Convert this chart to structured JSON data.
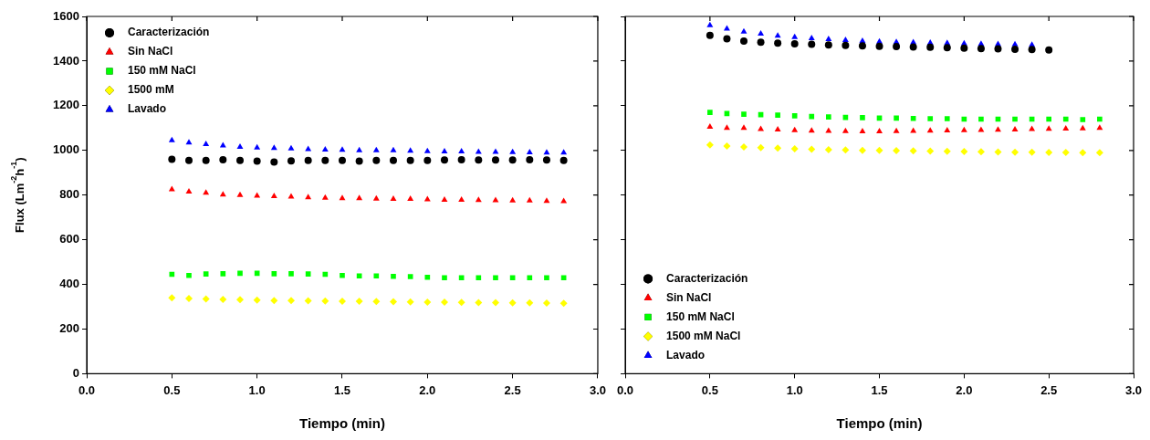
{
  "chart_data": [
    {
      "type": "scatter",
      "ylabel": "Flux (Lm$^{-2}$h$^{-1}$)",
      "xlabel": "Tiempo (min)",
      "xlim": [
        0,
        3
      ],
      "xticks": [
        {
          "value": 0,
          "label": "0.0"
        },
        {
          "value": 0.5,
          "label": "0.5"
        },
        {
          "value": 1,
          "label": "1.0"
        },
        {
          "value": 1.5,
          "label": "1.5"
        },
        {
          "value": 2,
          "label": "2.0"
        },
        {
          "value": 2.5,
          "label": "2.5"
        },
        {
          "value": 3,
          "label": "3.0"
        }
      ],
      "ylim": [
        0,
        1600
      ],
      "yticks": [
        0,
        200,
        400,
        600,
        800,
        1000,
        1200,
        1400,
        1600
      ],
      "grid": false,
      "legend": "top left",
      "series": [
        {
          "name": "Caracterización",
          "color": "#000000",
          "marker": "circle",
          "x": [
            0.5,
            0.6,
            0.7,
            0.8,
            0.9,
            1.0,
            1.1,
            1.2,
            1.3,
            1.4,
            1.5,
            1.6,
            1.7,
            1.8,
            1.9,
            2.0,
            2.1,
            2.2,
            2.3,
            2.4,
            2.5,
            2.6,
            2.7,
            2.8
          ],
          "values": [
            960,
            955,
            955,
            958,
            955,
            952,
            948,
            953,
            955,
            955,
            955,
            952,
            955,
            955,
            955,
            955,
            957,
            958,
            957,
            957,
            957,
            958,
            957,
            955
          ]
        },
        {
          "name": "Sin NaCl",
          "color": "#ff0000",
          "marker": "triangle",
          "x": [
            0.5,
            0.6,
            0.7,
            0.8,
            0.9,
            1.0,
            1.1,
            1.2,
            1.3,
            1.4,
            1.5,
            1.6,
            1.7,
            1.8,
            1.9,
            2.0,
            2.1,
            2.2,
            2.3,
            2.4,
            2.5,
            2.6,
            2.7,
            2.8
          ],
          "values": [
            825,
            815,
            810,
            802,
            800,
            797,
            795,
            793,
            790,
            788,
            785,
            785,
            783,
            782,
            782,
            780,
            778,
            778,
            777,
            776,
            775,
            775,
            773,
            772
          ]
        },
        {
          "name": "150 mM NaCl",
          "color": "#00ff00",
          "marker": "square",
          "x": [
            0.5,
            0.6,
            0.7,
            0.8,
            0.9,
            1.0,
            1.1,
            1.2,
            1.3,
            1.4,
            1.5,
            1.6,
            1.7,
            1.8,
            1.9,
            2.0,
            2.1,
            2.2,
            2.3,
            2.4,
            2.5,
            2.6,
            2.7,
            2.8
          ],
          "values": [
            445,
            440,
            447,
            448,
            450,
            450,
            448,
            448,
            447,
            445,
            440,
            438,
            438,
            436,
            435,
            432,
            430,
            430,
            430,
            430,
            430,
            430,
            430,
            430
          ]
        },
        {
          "name": "1500 mM",
          "color": "#ffff00",
          "marker": "diamond",
          "x": [
            0.5,
            0.6,
            0.7,
            0.8,
            0.9,
            1.0,
            1.1,
            1.2,
            1.3,
            1.4,
            1.5,
            1.6,
            1.7,
            1.8,
            1.9,
            2.0,
            2.1,
            2.2,
            2.3,
            2.4,
            2.5,
            2.6,
            2.7,
            2.8
          ],
          "values": [
            340,
            337,
            335,
            333,
            332,
            330,
            328,
            328,
            327,
            326,
            325,
            325,
            324,
            323,
            322,
            320,
            320,
            319,
            318,
            318,
            317,
            317,
            316,
            315
          ]
        },
        {
          "name": "Lavado",
          "color": "#0000ff",
          "marker": "triangle",
          "x": [
            0.5,
            0.6,
            0.7,
            0.8,
            0.9,
            1.0,
            1.1,
            1.2,
            1.3,
            1.4,
            1.5,
            1.6,
            1.7,
            1.8,
            1.9,
            2.0,
            2.1,
            2.2,
            2.3,
            2.4,
            2.5,
            2.6,
            2.7,
            2.8
          ],
          "values": [
            1045,
            1035,
            1028,
            1022,
            1015,
            1012,
            1010,
            1008,
            1005,
            1003,
            1002,
            1000,
            1000,
            1000,
            998,
            996,
            995,
            995,
            993,
            993,
            992,
            991,
            990,
            990
          ]
        }
      ]
    },
    {
      "type": "scatter",
      "xlabel": "Tiempo (min)",
      "xlim": [
        0,
        3
      ],
      "xticks": [
        {
          "value": 0,
          "label": "0.0"
        },
        {
          "value": 0.5,
          "label": "0.5"
        },
        {
          "value": 1,
          "label": "1.0"
        },
        {
          "value": 1.5,
          "label": "1.5"
        },
        {
          "value": 2,
          "label": "2.0"
        },
        {
          "value": 2.5,
          "label": "2.5"
        },
        {
          "value": 3,
          "label": "3.0"
        }
      ],
      "ylim": [
        0,
        1600
      ],
      "yticks": [
        0,
        200,
        400,
        600,
        800,
        1000,
        1200,
        1400,
        1600
      ],
      "tick_labels": "x",
      "grid": false,
      "legend": "bottom left",
      "series": [
        {
          "name": "Caracterización",
          "color": "#000000",
          "marker": "circle",
          "x": [
            0.5,
            0.6,
            0.7,
            0.8,
            0.9,
            1.0,
            1.1,
            1.2,
            1.3,
            1.4,
            1.5,
            1.6,
            1.7,
            1.8,
            1.9,
            2.0,
            2.1,
            2.2,
            2.3,
            2.4,
            2.5
          ],
          "values": [
            1515,
            1500,
            1490,
            1485,
            1480,
            1477,
            1475,
            1472,
            1470,
            1468,
            1466,
            1465,
            1463,
            1462,
            1460,
            1458,
            1456,
            1455,
            1453,
            1452,
            1450
          ]
        },
        {
          "name": "Sin NaCl",
          "color": "#ff0000",
          "marker": "triangle",
          "x": [
            0.5,
            0.6,
            0.7,
            0.8,
            0.9,
            1.0,
            1.1,
            1.2,
            1.3,
            1.4,
            1.5,
            1.6,
            1.7,
            1.8,
            1.9,
            2.0,
            2.1,
            2.2,
            2.3,
            2.4,
            2.5,
            2.6,
            2.7,
            2.8
          ],
          "values": [
            1105,
            1100,
            1100,
            1095,
            1093,
            1090,
            1088,
            1087,
            1086,
            1085,
            1085,
            1086,
            1087,
            1088,
            1089,
            1090,
            1091,
            1092,
            1093,
            1095,
            1096,
            1097,
            1098,
            1100
          ]
        },
        {
          "name": "150 mM NaCl",
          "color": "#00ff00",
          "marker": "square",
          "x": [
            0.5,
            0.6,
            0.7,
            0.8,
            0.9,
            1.0,
            1.1,
            1.2,
            1.3,
            1.4,
            1.5,
            1.6,
            1.7,
            1.8,
            1.9,
            2.0,
            2.1,
            2.2,
            2.3,
            2.4,
            2.5,
            2.6,
            2.7,
            2.8
          ],
          "values": [
            1170,
            1165,
            1162,
            1160,
            1158,
            1155,
            1152,
            1150,
            1148,
            1147,
            1145,
            1145,
            1143,
            1142,
            1142,
            1140,
            1140,
            1140,
            1140,
            1140,
            1140,
            1140,
            1138,
            1140
          ]
        },
        {
          "name": "1500 mM NaCl",
          "color": "#ffff00",
          "marker": "diamond",
          "x": [
            0.5,
            0.6,
            0.7,
            0.8,
            0.9,
            1.0,
            1.1,
            1.2,
            1.3,
            1.4,
            1.5,
            1.6,
            1.7,
            1.8,
            1.9,
            2.0,
            2.1,
            2.2,
            2.3,
            2.4,
            2.5,
            2.6,
            2.7,
            2.8
          ],
          "values": [
            1025,
            1020,
            1015,
            1012,
            1010,
            1007,
            1005,
            1003,
            1002,
            1000,
            1000,
            999,
            998,
            997,
            996,
            995,
            994,
            993,
            992,
            992,
            991,
            991,
            990,
            990
          ]
        },
        {
          "name": "Lavado",
          "color": "#0000ff",
          "marker": "triangle",
          "x": [
            0.5,
            0.6,
            0.7,
            0.8,
            0.9,
            1.0,
            1.1,
            1.2,
            1.3,
            1.4,
            1.5,
            1.6,
            1.7,
            1.8,
            1.9,
            2.0,
            2.1,
            2.2,
            2.3,
            2.4
          ],
          "values": [
            1560,
            1545,
            1532,
            1522,
            1513,
            1507,
            1502,
            1498,
            1494,
            1490,
            1487,
            1485,
            1483,
            1481,
            1480,
            1478,
            1476,
            1475,
            1474,
            1472
          ]
        }
      ]
    }
  ]
}
